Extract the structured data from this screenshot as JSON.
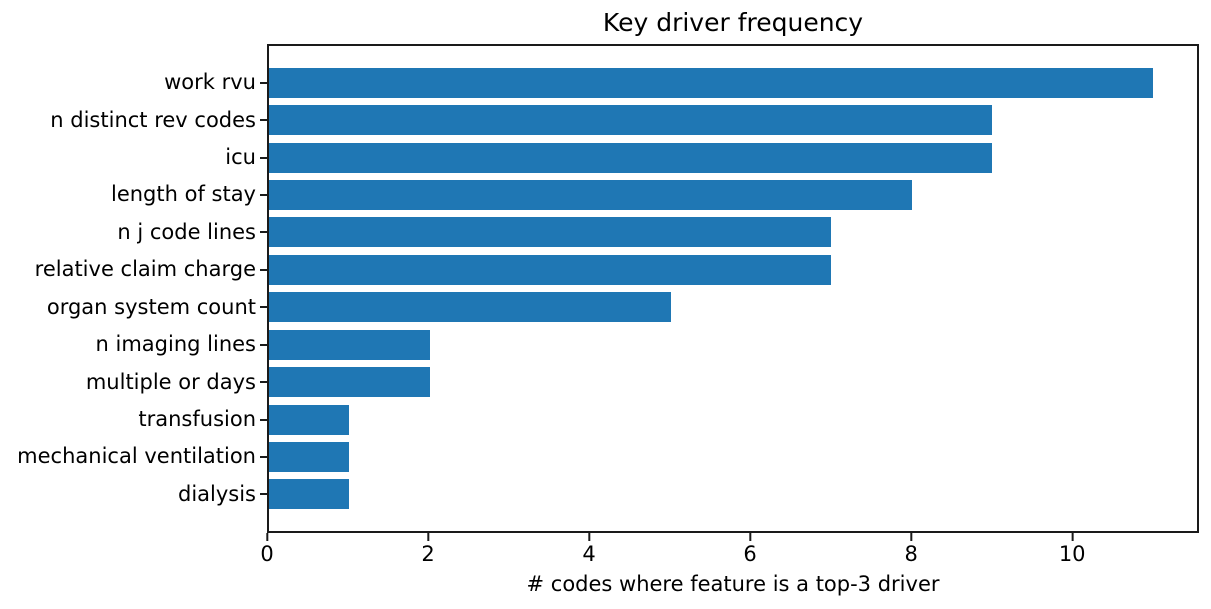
{
  "chart_data": {
    "type": "bar",
    "orientation": "horizontal",
    "title": "Key driver frequency",
    "xlabel": "# codes where feature is a top-3 driver",
    "ylabel": "",
    "categories": [
      "work rvu",
      "n distinct rev codes",
      "icu",
      "length of stay",
      "n j code lines",
      "relative claim charge",
      "organ system count",
      "n imaging lines",
      "multiple or days",
      "transfusion",
      "mechanical ventilation",
      "dialysis"
    ],
    "values": [
      11,
      9,
      9,
      8,
      7,
      7,
      5,
      2,
      2,
      1,
      1,
      1
    ],
    "xticks": [
      0,
      2,
      4,
      6,
      8,
      10
    ],
    "xlim": [
      0,
      11.55
    ],
    "grid": false,
    "legend": null,
    "colors": {
      "bar": "#1f77b4",
      "spine": "#1a1a1a",
      "text": "#000000",
      "background": "#ffffff"
    }
  }
}
